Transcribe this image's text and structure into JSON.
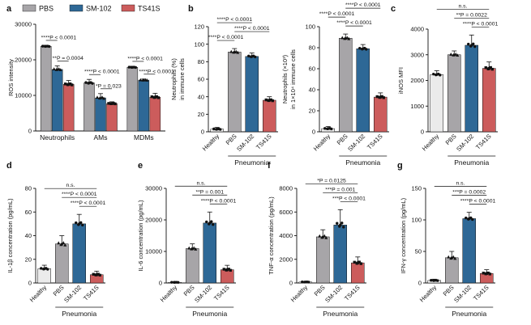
{
  "legend": [
    {
      "label": "PBS",
      "color": "#a7a5a8"
    },
    {
      "label": "SM-102",
      "color": "#2e6896"
    },
    {
      "label": "TS41S",
      "color": "#cc5c5c"
    }
  ],
  "colors": {
    "healthy": "#ebebeb",
    "dot": "#111111",
    "axis": "#111111"
  },
  "chart_data": [
    {
      "panel": "a",
      "type": "bar",
      "ylabel": "ROS intensity",
      "ylim": [
        0,
        30000
      ],
      "yticks": [
        0,
        10000,
        20000,
        30000
      ],
      "groups": [
        "Neutrophils",
        "AMs",
        "MDMs"
      ],
      "series": [
        {
          "name": "PBS",
          "values": [
            23800,
            13500,
            17900
          ],
          "err": [
            300,
            1000,
            300
          ]
        },
        {
          "name": "SM-102",
          "values": [
            17300,
            9300,
            14300
          ],
          "err": [
            1000,
            1200,
            300
          ]
        },
        {
          "name": "TS41S",
          "values": [
            13100,
            7700,
            9500
          ],
          "err": [
            1100,
            500,
            1100
          ]
        }
      ],
      "significance": [
        {
          "group": 0,
          "a": "PBS",
          "b": "SM-102",
          "label": "****P < 0.0001"
        },
        {
          "group": 0,
          "a": "SM-102",
          "b": "TS41S",
          "label": "**P = 0.0004"
        },
        {
          "group": 1,
          "a": "PBS",
          "b": "SM-102",
          "label": "****P < 0.0001"
        },
        {
          "group": 1,
          "a": "SM-102",
          "b": "TS41S",
          "label": "*P = 0.023"
        },
        {
          "group": 2,
          "a": "PBS",
          "b": "SM-102",
          "label": "****P < 0.0001"
        },
        {
          "group": 2,
          "a": "SM-102",
          "b": "TS41S",
          "label": "****P < 0.0001"
        }
      ]
    },
    {
      "panel": "b",
      "type": "bar",
      "ylabel": [
        "Neutrophils (%)",
        "in immune cells"
      ],
      "ylim": [
        0,
        120
      ],
      "yticks": [
        0,
        20,
        40,
        60,
        80,
        100,
        120
      ],
      "categories": [
        "Healthy",
        "PBS",
        "SM-102",
        "TS41S"
      ],
      "values": [
        3,
        91,
        86,
        36
      ],
      "err": [
        2,
        4,
        4,
        4
      ],
      "xgroup": "Pneumonia",
      "significance": [
        {
          "a": 0,
          "b": 1,
          "label": "****P < 0.0001"
        },
        {
          "a": 0,
          "b": 2,
          "label": "****P < 0.0001"
        },
        {
          "a": 1,
          "b": 3,
          "label": "****P < 0.0001"
        }
      ]
    },
    {
      "panel": "b",
      "type": "bar",
      "ylabel": [
        "Neutrophils (×10³)",
        "in 1×10⁴ immune cells"
      ],
      "ylim": [
        0,
        100
      ],
      "yticks": [
        0,
        20,
        40,
        60,
        80,
        100
      ],
      "categories": [
        "Healthy",
        "PBS",
        "SM-102",
        "TS41S"
      ],
      "values": [
        3,
        89,
        79,
        33
      ],
      "err": [
        2,
        4,
        4,
        4
      ],
      "xgroup": "Pneumonia",
      "significance": [
        {
          "a": 0,
          "b": 1,
          "label": "****P < 0.0001"
        },
        {
          "a": 1,
          "b": 2,
          "label": "****P < 0.0001"
        },
        {
          "a": 1,
          "b": 3,
          "label": "****P < 0.0001"
        }
      ]
    },
    {
      "panel": "c",
      "type": "bar",
      "ylabel": [
        "iNOS MFI"
      ],
      "ylim": [
        0,
        4000
      ],
      "yticks": [
        0,
        1000,
        2000,
        3000,
        4000
      ],
      "categories": [
        "Healthy",
        "PBS",
        "SM-102",
        "TS41S"
      ],
      "values": [
        2230,
        3000,
        3370,
        2470
      ],
      "err": [
        150,
        150,
        400,
        250
      ],
      "xgroup": "Pneumonia",
      "significance": [
        {
          "a": 0,
          "b": 3,
          "label": "n.s."
        },
        {
          "a": 1,
          "b": 3,
          "label": "**P = 0.0022"
        },
        {
          "a": 2,
          "b": 3,
          "label": "****P < 0.0001"
        }
      ]
    },
    {
      "panel": "d",
      "type": "bar",
      "ylabel": [
        "IL-1β concentration (pg/mL)"
      ],
      "ylim": [
        0,
        80
      ],
      "yticks": [
        0,
        20,
        40,
        60,
        80
      ],
      "categories": [
        "Healthy",
        "PBS",
        "SM-102",
        "TS41S"
      ],
      "values": [
        12,
        33,
        50,
        7
      ],
      "err": [
        3,
        7,
        8,
        3
      ],
      "xgroup": "Pneumonia",
      "significance": [
        {
          "a": 0,
          "b": 3,
          "label": "n.s."
        },
        {
          "a": 1,
          "b": 3,
          "label": "****P < 0.0001"
        },
        {
          "a": 2,
          "b": 3,
          "label": "****P < 0.0001"
        }
      ]
    },
    {
      "panel": "e",
      "type": "bar",
      "ylabel": [
        "IL-6 concentration (pg/mL)"
      ],
      "ylim": [
        0,
        30000
      ],
      "yticks": [
        0,
        10000,
        20000,
        30000
      ],
      "categories": [
        "Healthy",
        "PBS",
        "SM-102",
        "TS41S"
      ],
      "values": [
        200,
        10900,
        19000,
        4200
      ],
      "err": [
        100,
        1500,
        3500,
        1400
      ],
      "xgroup": "Pneumonia",
      "significance": [
        {
          "a": 0,
          "b": 3,
          "label": "n.s."
        },
        {
          "a": 1,
          "b": 3,
          "label": "**P = 0.001"
        },
        {
          "a": 2,
          "b": 3,
          "label": "****P < 0.0001"
        }
      ]
    },
    {
      "panel": "f",
      "type": "bar",
      "ylabel": [
        "TNF-α concentration (pg/mL)"
      ],
      "ylim": [
        0,
        8000
      ],
      "yticks": [
        0,
        2000,
        4000,
        6000,
        8000
      ],
      "categories": [
        "Healthy",
        "PBS",
        "SM-102",
        "TS41S"
      ],
      "values": [
        80,
        3900,
        4900,
        1700
      ],
      "err": [
        50,
        600,
        1300,
        500
      ],
      "xgroup": "Pneumonia",
      "significance": [
        {
          "a": 0,
          "b": 3,
          "label": "*P = 0.0125"
        },
        {
          "a": 1,
          "b": 3,
          "label": "***P = 0.001"
        },
        {
          "a": 2,
          "b": 3,
          "label": "***P < 0.0001"
        }
      ]
    },
    {
      "panel": "g",
      "type": "bar",
      "ylabel": [
        "IFN-γ concentration (pg/mL)"
      ],
      "ylim": [
        0,
        150
      ],
      "yticks": [
        0,
        50,
        100,
        150
      ],
      "categories": [
        "Healthy",
        "PBS",
        "SM-102",
        "TS41S"
      ],
      "values": [
        4,
        40,
        102,
        15
      ],
      "err": [
        2,
        10,
        10,
        6
      ],
      "xgroup": "Pneumonia",
      "significance": [
        {
          "a": 0,
          "b": 3,
          "label": "n.s."
        },
        {
          "a": 1,
          "b": 3,
          "label": "***P = 0.0002"
        },
        {
          "a": 2,
          "b": 3,
          "label": "****P < 0.0001"
        }
      ]
    }
  ]
}
